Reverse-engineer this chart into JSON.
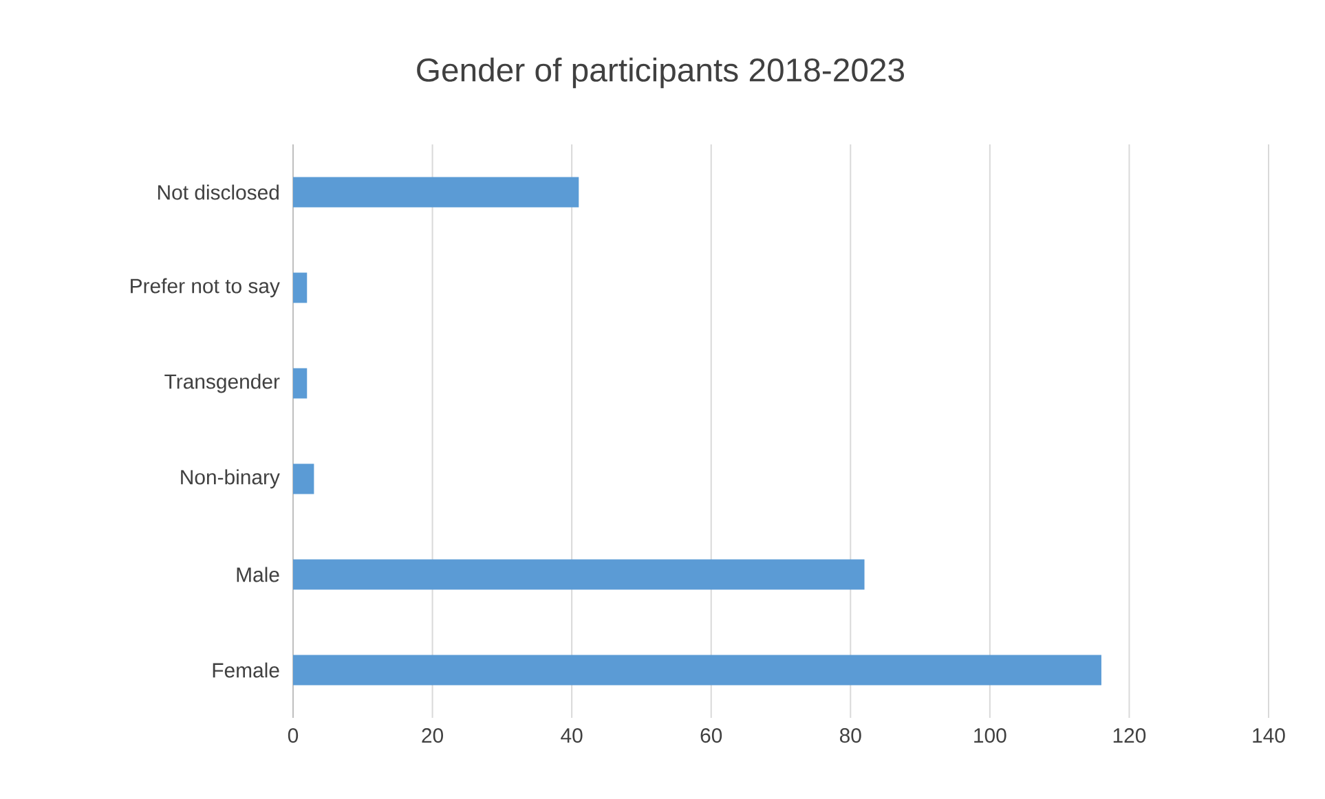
{
  "chart_data": {
    "type": "bar",
    "orientation": "horizontal",
    "title": "Gender of participants 2018-2023",
    "categories": [
      "Not disclosed",
      "Prefer not to say",
      "Transgender",
      "Non-binary",
      "Male",
      "Female"
    ],
    "values": [
      41,
      2,
      2,
      3,
      82,
      116
    ],
    "color": "#5b9bd5",
    "xlim": [
      0,
      140
    ],
    "xticks": [
      0,
      20,
      40,
      60,
      80,
      100,
      120,
      140
    ],
    "grid": "x"
  }
}
